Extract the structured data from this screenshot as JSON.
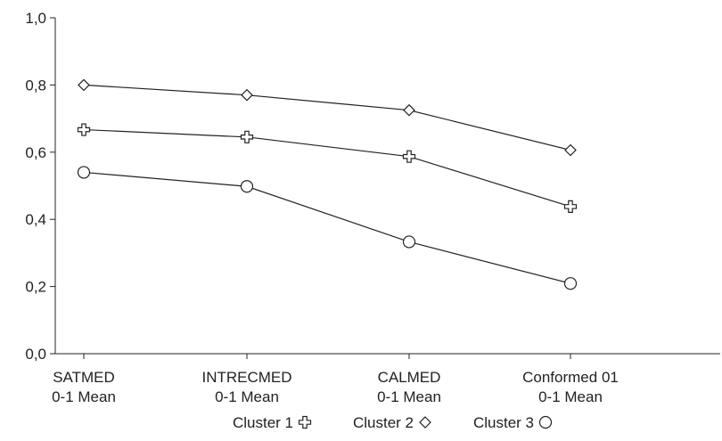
{
  "chart_data": {
    "type": "line",
    "title": "",
    "xlabel": "",
    "ylabel": "",
    "categories": [
      [
        "SATMED",
        "0-1 Mean"
      ],
      [
        "INTRECMED",
        "0-1 Mean"
      ],
      [
        "CALMED",
        "0-1 Mean"
      ],
      [
        "Conformed 01",
        "0-1 Mean"
      ]
    ],
    "y_ticks": [
      "0,0",
      "0,2",
      "0,4",
      "0,6",
      "0,8",
      "1,0"
    ],
    "ylim": [
      0,
      1
    ],
    "grid": false,
    "legend_position": "bottom",
    "series": [
      {
        "name": "Cluster 1",
        "marker": "plus",
        "values": [
          0.667,
          0.645,
          0.587,
          0.438
        ]
      },
      {
        "name": "Cluster 2",
        "marker": "diamond",
        "values": [
          0.8,
          0.77,
          0.725,
          0.606
        ]
      },
      {
        "name": "Cluster 3",
        "marker": "circle",
        "values": [
          0.54,
          0.498,
          0.333,
          0.209
        ]
      }
    ],
    "colors": {
      "line": "#222222",
      "axis": "#222222",
      "marker_fill": "#ffffff"
    }
  }
}
